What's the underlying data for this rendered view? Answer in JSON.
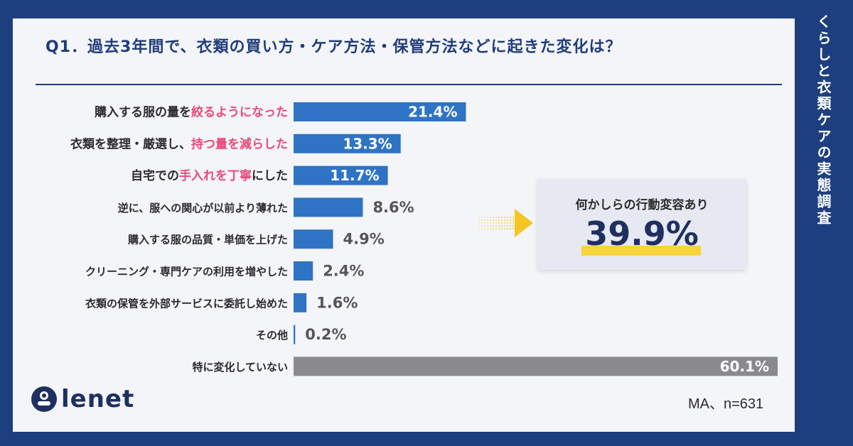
{
  "side_title": "くらしと衣類ケアの実態調査",
  "title": "Q1．過去3年間で、衣類の買い方・ケア方法・保管方法などに起きた変化は？",
  "note": "MA、n=631",
  "logo_text": "lenet",
  "callout": {
    "label": "何かしらの行動変容あり",
    "value": "39.9%"
  },
  "colors": {
    "bar": "#2f74c4",
    "bar_none": "#8a8a8e",
    "accent": "#e84a7b",
    "title": "#1f3d7a",
    "frame": "#1e3f7f",
    "highlight": "#f7d43a"
  },
  "chart_data": {
    "type": "bar",
    "orientation": "horizontal",
    "categories": [
      "購入する服の量を絞るようになった",
      "衣類を整理・厳選し、持つ量を減らした",
      "自宅での手入れを丁寧にした",
      "逆に、服への関心が以前より薄れた",
      "購入する服の品質・単価を上げた",
      "クリーニング・専門ケアの利用を増やした",
      "衣類の保管を外部サービスに委託し始めた",
      "その他",
      "特に変化していない"
    ],
    "label_parts": [
      [
        {
          "t": "購入する服の量を",
          "hl": false
        },
        {
          "t": "絞るようになった",
          "hl": true
        }
      ],
      [
        {
          "t": "衣類を整理・厳選し、",
          "hl": false
        },
        {
          "t": "持つ量を減らした",
          "hl": true
        }
      ],
      [
        {
          "t": "自宅での",
          "hl": false
        },
        {
          "t": "手入れを丁寧",
          "hl": true
        },
        {
          "t": "にした",
          "hl": false
        }
      ],
      [
        {
          "t": "逆に、服への関心が以前より薄れた",
          "hl": false
        }
      ],
      [
        {
          "t": "購入する服の品質・単価を上げた",
          "hl": false
        }
      ],
      [
        {
          "t": "クリーニング・専門ケアの利用を増やした",
          "hl": false
        }
      ],
      [
        {
          "t": "衣類の保管を外部サービスに委託し始めた",
          "hl": false
        }
      ],
      [
        {
          "t": "その他",
          "hl": false
        }
      ],
      [
        {
          "t": "特に変化していない",
          "hl": false
        }
      ]
    ],
    "values": [
      21.4,
      13.3,
      11.7,
      8.6,
      4.9,
      2.4,
      1.6,
      0.2,
      60.1
    ],
    "value_labels": [
      "21.4%",
      "13.3%",
      "11.7%",
      "8.6%",
      "4.9%",
      "2.4%",
      "1.6%",
      "0.2%",
      "60.1%"
    ],
    "unit": "%",
    "xlim": [
      0,
      60.1
    ],
    "grid": false,
    "legend": "none"
  }
}
